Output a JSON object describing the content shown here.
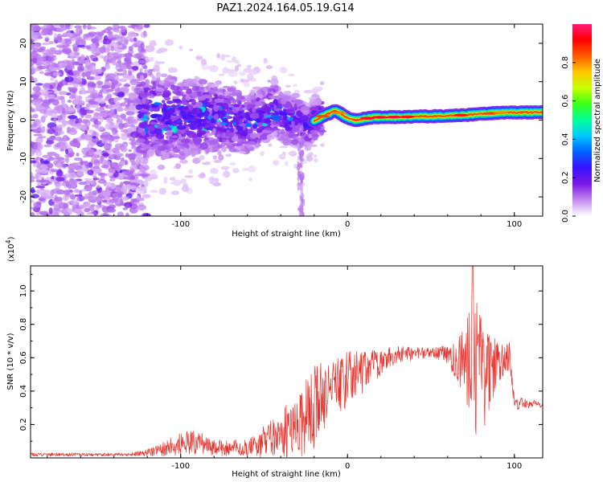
{
  "page_title": "PAZ1.2024.164.05.19.G14",
  "chart_data": [
    {
      "type": "heatmap",
      "name": "spectrogram",
      "xlabel": "Height of straight line (km)",
      "ylabel": "Frequency (Hz)",
      "xlim": [
        -190,
        117
      ],
      "ylim": [
        -25,
        25
      ],
      "xticks": [
        -100,
        0,
        100
      ],
      "yticks": [
        -20,
        -10,
        0,
        10,
        20
      ],
      "colorbar": {
        "label": "Normalized spectral amplitude",
        "range": [
          0,
          1
        ],
        "ticks": [
          "0.0",
          "0.2",
          "0.4",
          "0.6",
          "0.8"
        ],
        "colors": [
          "#ffffff",
          "#c58bf0",
          "#7a18e6",
          "#3a10ff",
          "#0060ff",
          "#00c8ff",
          "#00ff9a",
          "#38ff1a",
          "#c8ff00",
          "#ffc800",
          "#ff5a00",
          "#ff0000",
          "#ff1a7a"
        ]
      },
      "ridge": [
        {
          "x": -120,
          "f": 1.5
        },
        {
          "x": -100,
          "f": 0.5
        },
        {
          "x": -80,
          "f": 1.0
        },
        {
          "x": -60,
          "f": -1.0
        },
        {
          "x": -45,
          "f": 2.5
        },
        {
          "x": -35,
          "f": 0.0
        },
        {
          "x": -25,
          "f": -1.5
        },
        {
          "x": -15,
          "f": 1.0
        },
        {
          "x": -7,
          "f": 2.5
        },
        {
          "x": 0,
          "f": 0.5
        },
        {
          "x": 5,
          "f": 0.0
        },
        {
          "x": 15,
          "f": 0.7
        },
        {
          "x": 30,
          "f": 0.8
        },
        {
          "x": 50,
          "f": 1.0
        },
        {
          "x": 65,
          "f": 1.2
        },
        {
          "x": 80,
          "f": 1.6
        },
        {
          "x": 95,
          "f": 2.0
        },
        {
          "x": 110,
          "f": 2.0
        }
      ]
    },
    {
      "type": "line",
      "name": "snr",
      "xlabel": "Height of straight line (km)",
      "ylabel": "SNR (10 * v/v)",
      "scale_label": "(x10",
      "scale_exp": "4",
      "scale_close": ")",
      "xlim": [
        -190,
        117
      ],
      "ylim": [
        0,
        1.15
      ],
      "xticks": [
        -100,
        0,
        100
      ],
      "yticks": [
        "0.2",
        "0.4",
        "0.6",
        "0.8",
        "1.0"
      ],
      "color": "#e8302a",
      "envelope": [
        {
          "x": -190,
          "base": 0.02,
          "amp": 0.01
        },
        {
          "x": -130,
          "base": 0.02,
          "amp": 0.01
        },
        {
          "x": -115,
          "base": 0.04,
          "amp": 0.03
        },
        {
          "x": -95,
          "base": 0.1,
          "amp": 0.09
        },
        {
          "x": -80,
          "base": 0.06,
          "amp": 0.05
        },
        {
          "x": -60,
          "base": 0.06,
          "amp": 0.05
        },
        {
          "x": -45,
          "base": 0.12,
          "amp": 0.12
        },
        {
          "x": -30,
          "base": 0.2,
          "amp": 0.2
        },
        {
          "x": -20,
          "base": 0.3,
          "amp": 0.28
        },
        {
          "x": -10,
          "base": 0.42,
          "amp": 0.16
        },
        {
          "x": 0,
          "base": 0.46,
          "amp": 0.18
        },
        {
          "x": 15,
          "base": 0.55,
          "amp": 0.1
        },
        {
          "x": 30,
          "base": 0.62,
          "amp": 0.05
        },
        {
          "x": 50,
          "base": 0.63,
          "amp": 0.03
        },
        {
          "x": 60,
          "base": 0.62,
          "amp": 0.06
        },
        {
          "x": 70,
          "base": 0.58,
          "amp": 0.2
        },
        {
          "x": 75,
          "base": 0.55,
          "amp": 0.45
        },
        {
          "x": 82,
          "base": 0.52,
          "amp": 0.35
        },
        {
          "x": 90,
          "base": 0.58,
          "amp": 0.12
        },
        {
          "x": 97,
          "base": 0.6,
          "amp": 0.1
        },
        {
          "x": 100,
          "base": 0.32,
          "amp": 0.04
        },
        {
          "x": 110,
          "base": 0.33,
          "amp": 0.03
        },
        {
          "x": 117,
          "base": 0.31,
          "amp": 0.01
        }
      ],
      "peak": {
        "x": 75,
        "y": 1.15
      }
    }
  ]
}
